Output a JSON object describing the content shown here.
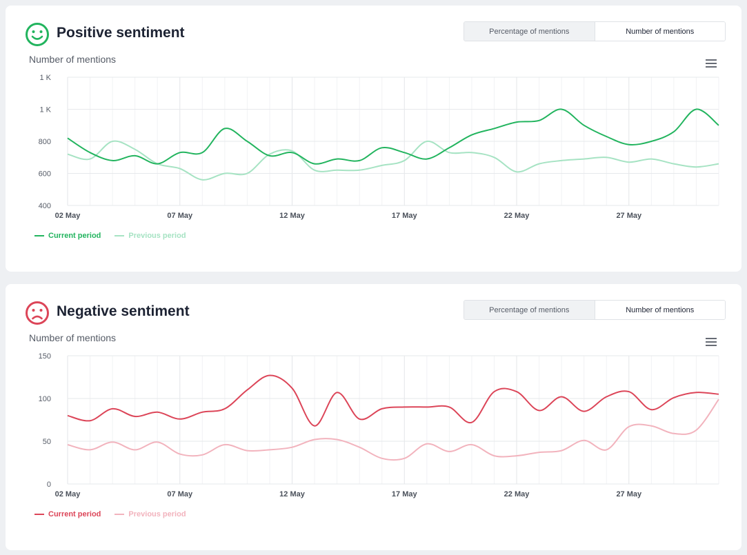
{
  "panels": [
    {
      "id": "positive",
      "title": "Positive sentiment",
      "toggle": {
        "percentage_label": "Percentage of mentions",
        "number_label": "Number of mentions",
        "selected": "Number of mentions"
      },
      "y_axis_label": "Number of mentions",
      "colors": {
        "current": "#22b45e",
        "previous": "#a6e3c3",
        "icon": "#22b45e"
      },
      "icon": "smiley-happy-icon",
      "legend": {
        "current": "Current period",
        "previous": "Previous period"
      },
      "chart_data": {
        "type": "line",
        "x_tick_labels": [
          "02 May",
          "07 May",
          "12 May",
          "17 May",
          "22 May",
          "27 May"
        ],
        "y_tick_labels": [
          "400",
          "600",
          "800",
          "1 K",
          "1 K"
        ],
        "ylim": [
          400,
          1200
        ],
        "grid": true,
        "x": [
          "02 May",
          "03 May",
          "04 May",
          "05 May",
          "06 May",
          "07 May",
          "08 May",
          "09 May",
          "10 May",
          "11 May",
          "12 May",
          "13 May",
          "14 May",
          "15 May",
          "16 May",
          "17 May",
          "18 May",
          "19 May",
          "20 May",
          "21 May",
          "22 May",
          "23 May",
          "24 May",
          "25 May",
          "26 May",
          "27 May",
          "28 May",
          "29 May",
          "30 May",
          "31 May"
        ],
        "series": [
          {
            "name": "Current period",
            "values": [
              820,
              730,
              680,
              710,
              660,
              730,
              730,
              880,
              800,
              710,
              730,
              660,
              690,
              680,
              760,
              730,
              690,
              760,
              840,
              880,
              920,
              930,
              1000,
              900,
              830,
              780,
              800,
              860,
              1000,
              900
            ]
          },
          {
            "name": "Previous period",
            "values": [
              720,
              690,
              800,
              750,
              660,
              630,
              560,
              600,
              600,
              720,
              740,
              620,
              620,
              620,
              650,
              680,
              800,
              730,
              730,
              700,
              610,
              660,
              680,
              690,
              700,
              670,
              690,
              660,
              640,
              660
            ]
          }
        ]
      }
    },
    {
      "id": "negative",
      "title": "Negative sentiment",
      "toggle": {
        "percentage_label": "Percentage of mentions",
        "number_label": "Number of mentions",
        "selected": "Number of mentions"
      },
      "y_axis_label": "Number of mentions",
      "colors": {
        "current": "#dc4558",
        "previous": "#f2b3bd",
        "icon": "#dc4558"
      },
      "icon": "smiley-sad-icon",
      "legend": {
        "current": "Current period",
        "previous": "Previous period"
      },
      "chart_data": {
        "type": "line",
        "x_tick_labels": [
          "02 May",
          "07 May",
          "12 May",
          "17 May",
          "22 May",
          "27 May"
        ],
        "y_tick_labels": [
          "0",
          "50",
          "100",
          "150"
        ],
        "ylim": [
          0,
          150
        ],
        "grid": true,
        "x": [
          "02 May",
          "03 May",
          "04 May",
          "05 May",
          "06 May",
          "07 May",
          "08 May",
          "09 May",
          "10 May",
          "11 May",
          "12 May",
          "13 May",
          "14 May",
          "15 May",
          "16 May",
          "17 May",
          "18 May",
          "19 May",
          "20 May",
          "21 May",
          "22 May",
          "23 May",
          "24 May",
          "25 May",
          "26 May",
          "27 May",
          "28 May",
          "29 May",
          "30 May",
          "31 May"
        ],
        "series": [
          {
            "name": "Current period",
            "values": [
              80,
              74,
              88,
              79,
              84,
              76,
              84,
              88,
              110,
              127,
              112,
              68,
              107,
              76,
              88,
              90,
              90,
              90,
              72,
              108,
              108,
              86,
              102,
              85,
              102,
              108,
              87,
              101,
              107,
              105
            ]
          },
          {
            "name": "Previous period",
            "values": [
              46,
              40,
              49,
              40,
              49,
              35,
              34,
              46,
              39,
              40,
              43,
              52,
              52,
              43,
              30,
              30,
              47,
              38,
              46,
              33,
              33,
              37,
              39,
              51,
              40,
              67,
              68,
              59,
              63,
              99
            ]
          }
        ]
      }
    }
  ]
}
